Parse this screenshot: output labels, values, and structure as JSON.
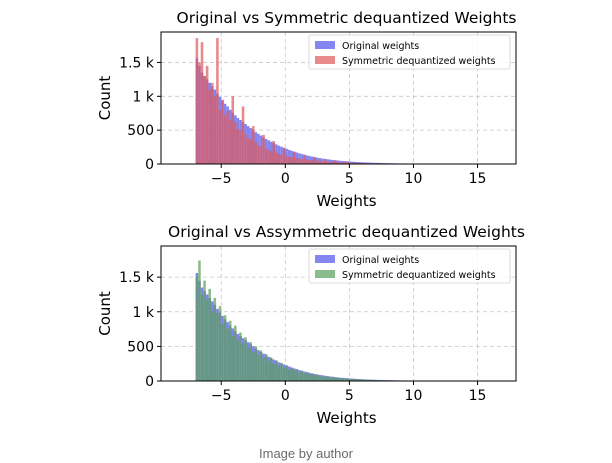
{
  "caption": "Image by author",
  "chart_data": [
    {
      "type": "bar",
      "title": "Original vs Symmetric dequantized Weights",
      "xlabel": "Weights",
      "ylabel": "Count",
      "xlim": [
        -9.7,
        18.0
      ],
      "ylim": [
        0,
        1950
      ],
      "xticks": [
        -5,
        0,
        5,
        10,
        15
      ],
      "xtick_labels": [
        "−5",
        "0",
        "5",
        "10",
        "15"
      ],
      "yticks": [
        0,
        500,
        1000,
        1500
      ],
      "ytick_labels": [
        "0",
        "500",
        "1 k",
        "1.5 k"
      ],
      "grid": true,
      "legend_position": "top-right",
      "series": [
        {
          "name": "Original weights",
          "color": "#6666ee",
          "bin_start": -7.0,
          "bin_width": 0.2,
          "values": [
            1560,
            1450,
            1350,
            1300,
            1250,
            1200,
            1150,
            1100,
            1040,
            990,
            940,
            890,
            850,
            800,
            760,
            720,
            680,
            650,
            620,
            590,
            560,
            530,
            500,
            470,
            445,
            420,
            395,
            370,
            350,
            330,
            310,
            290,
            270,
            255,
            240,
            225,
            210,
            195,
            182,
            170,
            158,
            147,
            137,
            127,
            118,
            109,
            101,
            94,
            87,
            81,
            75,
            70,
            65,
            60,
            56,
            52,
            48,
            45,
            42,
            39,
            36,
            34,
            31,
            29,
            27,
            25,
            23,
            21,
            20,
            18,
            17,
            16,
            15,
            14,
            13,
            12,
            11,
            10,
            9,
            9,
            8,
            8,
            7,
            7,
            6,
            6,
            5,
            5,
            5,
            4,
            4,
            4,
            3,
            3,
            3,
            3,
            2,
            2,
            2,
            2,
            2,
            2,
            2,
            1,
            1,
            1,
            1,
            1,
            1,
            1,
            1,
            1,
            1,
            1,
            1,
            1,
            1,
            1,
            1,
            1,
            1,
            1,
            1,
            1,
            1,
            1
          ]
        },
        {
          "name": "Symmetric dequantized weights",
          "color": "#e05a5a",
          "bin_start": -7.0,
          "bin_width": 0.2,
          "values": [
            1860,
            1500,
            1800,
            1300,
            1450,
            1100,
            1200,
            1000,
            1860,
            800,
            950,
            720,
            780,
            650,
            1000,
            620,
            520,
            500,
            850,
            440,
            380,
            360,
            560,
            320,
            280,
            260,
            430,
            230,
            200,
            190,
            340,
            170,
            150,
            140,
            230,
            120,
            110,
            100,
            180,
            90,
            80,
            75,
            130,
            65,
            60,
            55,
            100,
            50,
            45,
            40,
            70,
            35,
            32,
            30,
            50,
            26,
            24,
            22,
            36,
            19,
            17,
            16,
            24,
            14,
            12,
            11,
            17,
            10,
            9,
            8,
            12,
            7,
            6,
            6,
            8,
            5,
            5,
            4,
            6,
            4,
            3,
            3,
            4,
            3,
            2,
            2,
            3,
            2,
            2,
            2,
            2,
            2,
            1,
            1,
            1,
            1,
            1,
            1,
            1,
            1,
            1,
            1,
            1,
            1,
            1,
            1,
            1,
            1,
            1,
            1,
            1,
            1,
            1,
            1,
            1,
            1,
            1,
            1,
            1,
            1,
            1,
            1,
            1,
            1,
            1,
            1
          ]
        }
      ]
    },
    {
      "type": "bar",
      "title": "Original vs Assymmetric dequantized Weights",
      "xlabel": "Weights",
      "ylabel": "Count",
      "xlim": [
        -9.7,
        18.0
      ],
      "ylim": [
        0,
        1950
      ],
      "xticks": [
        -5,
        0,
        5,
        10,
        15
      ],
      "xtick_labels": [
        "−5",
        "0",
        "5",
        "10",
        "15"
      ],
      "yticks": [
        0,
        500,
        1000,
        1500
      ],
      "ytick_labels": [
        "0",
        "500",
        "1 k",
        "1.5 k"
      ],
      "grid": true,
      "legend_position": "top-right",
      "series": [
        {
          "name": "Original weights",
          "color": "#6666ee",
          "bin_start": -7.0,
          "bin_width": 0.2,
          "values": [
            1560,
            1450,
            1350,
            1300,
            1250,
            1200,
            1150,
            1100,
            1040,
            990,
            940,
            890,
            850,
            800,
            760,
            720,
            680,
            650,
            620,
            590,
            560,
            530,
            500,
            470,
            445,
            420,
            395,
            370,
            350,
            330,
            310,
            290,
            270,
            255,
            240,
            225,
            210,
            195,
            182,
            170,
            158,
            147,
            137,
            127,
            118,
            109,
            101,
            94,
            87,
            81,
            75,
            70,
            65,
            60,
            56,
            52,
            48,
            45,
            42,
            39,
            36,
            34,
            31,
            29,
            27,
            25,
            23,
            21,
            20,
            18,
            17,
            16,
            15,
            14,
            13,
            12,
            11,
            10,
            9,
            9,
            8,
            8,
            7,
            7,
            6,
            6,
            5,
            5,
            5,
            4,
            4,
            4,
            3,
            3,
            3,
            3,
            2,
            2,
            2,
            2,
            2,
            2,
            2,
            1,
            1,
            1,
            1,
            1,
            1,
            1,
            1,
            1,
            1,
            1,
            1,
            1,
            1,
            1,
            1,
            1,
            1,
            1,
            1,
            1,
            1,
            1
          ]
        },
        {
          "name": "Symmetric dequantized weights",
          "color": "#5aa05a",
          "bin_start": -7.0,
          "bin_width": 0.2,
          "values": [
            1500,
            1740,
            1250,
            1450,
            1180,
            1330,
            1000,
            1200,
            980,
            1080,
            820,
            950,
            760,
            870,
            650,
            800,
            600,
            700,
            540,
            630,
            480,
            560,
            420,
            500,
            380,
            440,
            330,
            390,
            290,
            340,
            250,
            300,
            220,
            260,
            190,
            225,
            165,
            195,
            145,
            170,
            125,
            148,
            108,
            128,
            93,
            110,
            80,
            95,
            68,
            82,
            58,
            70,
            50,
            60,
            43,
            51,
            37,
            44,
            32,
            38,
            27,
            32,
            23,
            27,
            20,
            23,
            17,
            20,
            14,
            17,
            12,
            14,
            10,
            12,
            9,
            10,
            7,
            9,
            6,
            7,
            5,
            6,
            4,
            5,
            4,
            4,
            3,
            3,
            3,
            3,
            2,
            2,
            2,
            2,
            2,
            2,
            1,
            1,
            1,
            1,
            1,
            1,
            1,
            1,
            1,
            1,
            1,
            1,
            1,
            1,
            1,
            1,
            1,
            1,
            1,
            1,
            1,
            1,
            1,
            1,
            1,
            1,
            1,
            1,
            1,
            1
          ]
        }
      ]
    }
  ]
}
